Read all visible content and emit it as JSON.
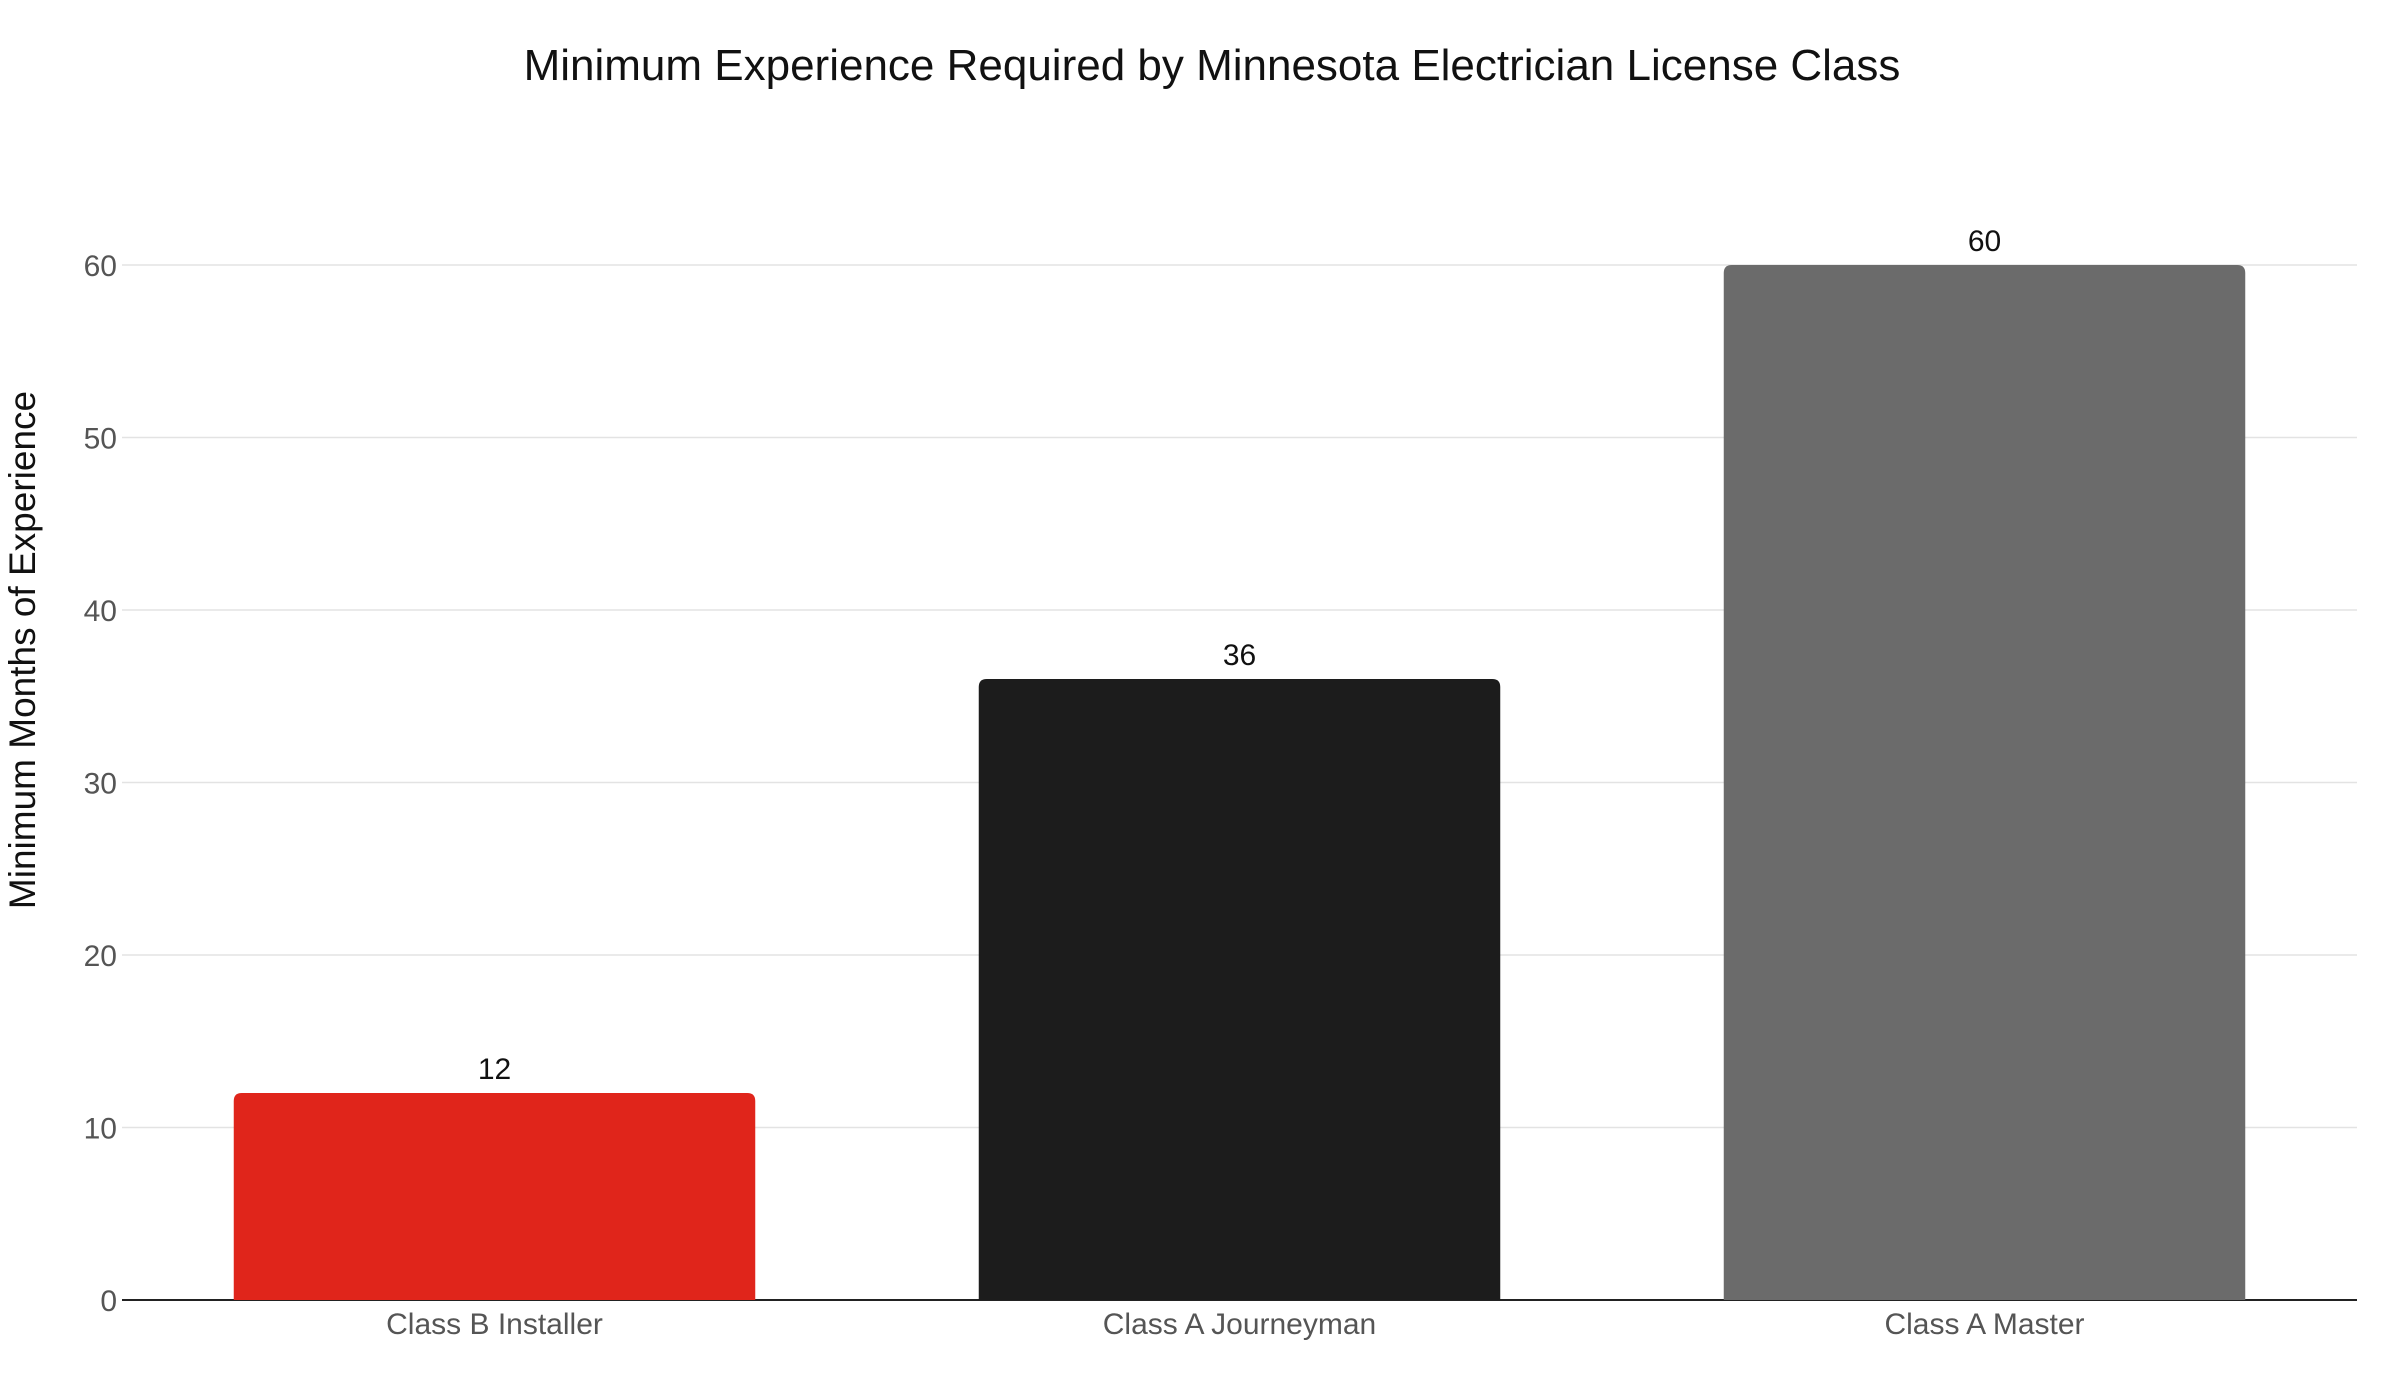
{
  "chart_data": {
    "type": "bar",
    "title": "Minimum Experience Required by Minnesota Electrician License Class",
    "xlabel": "",
    "ylabel": "Minimum Months of Experience",
    "categories": [
      "Class B Installer",
      "Class A Journeyman",
      "Class A Master"
    ],
    "values": [
      12,
      36,
      60
    ],
    "data_labels": [
      "12",
      "36",
      "60"
    ],
    "colors": [
      "#e0251b",
      "#1c1c1c",
      "#6b6b6b"
    ],
    "ylim": [
      0,
      60
    ],
    "yticks": [
      0,
      10,
      20,
      30,
      40,
      50,
      60
    ],
    "grid": true,
    "legend": "none"
  }
}
